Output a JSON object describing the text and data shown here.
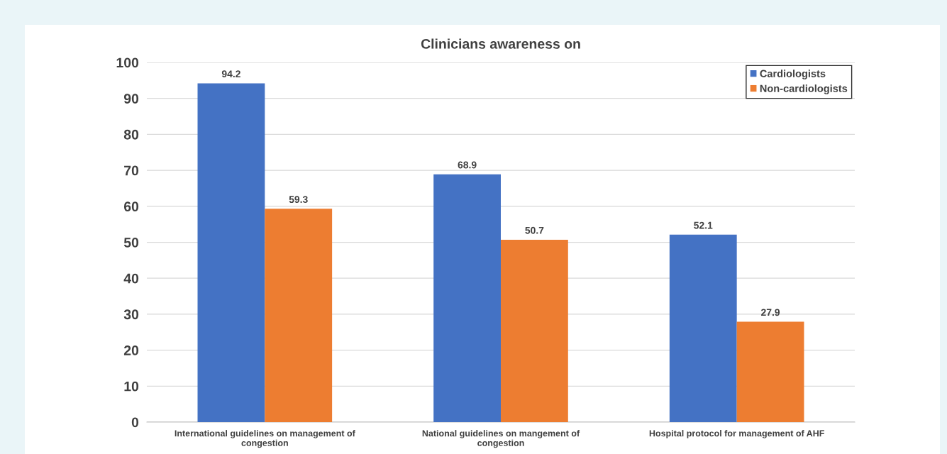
{
  "chart_data": {
    "type": "bar",
    "title": "Clinicians awareness on",
    "categories": [
      "International guidelines on management of congestion",
      "National guidelines on mangement of congestion",
      "Hospital protocol for management of AHF"
    ],
    "series": [
      {
        "name": "Cardiologists",
        "color": "#4472c4",
        "values": [
          94.2,
          68.9,
          52.1
        ]
      },
      {
        "name": "Non-cardiologists",
        "color": "#ed7d31",
        "values": [
          59.3,
          50.7,
          27.9
        ]
      }
    ],
    "ylim": [
      0,
      100
    ],
    "yticks": [
      0,
      10,
      20,
      30,
      40,
      50,
      60,
      70,
      80,
      90,
      100
    ],
    "grid": "y",
    "legend": "top right",
    "data_labels": true
  }
}
